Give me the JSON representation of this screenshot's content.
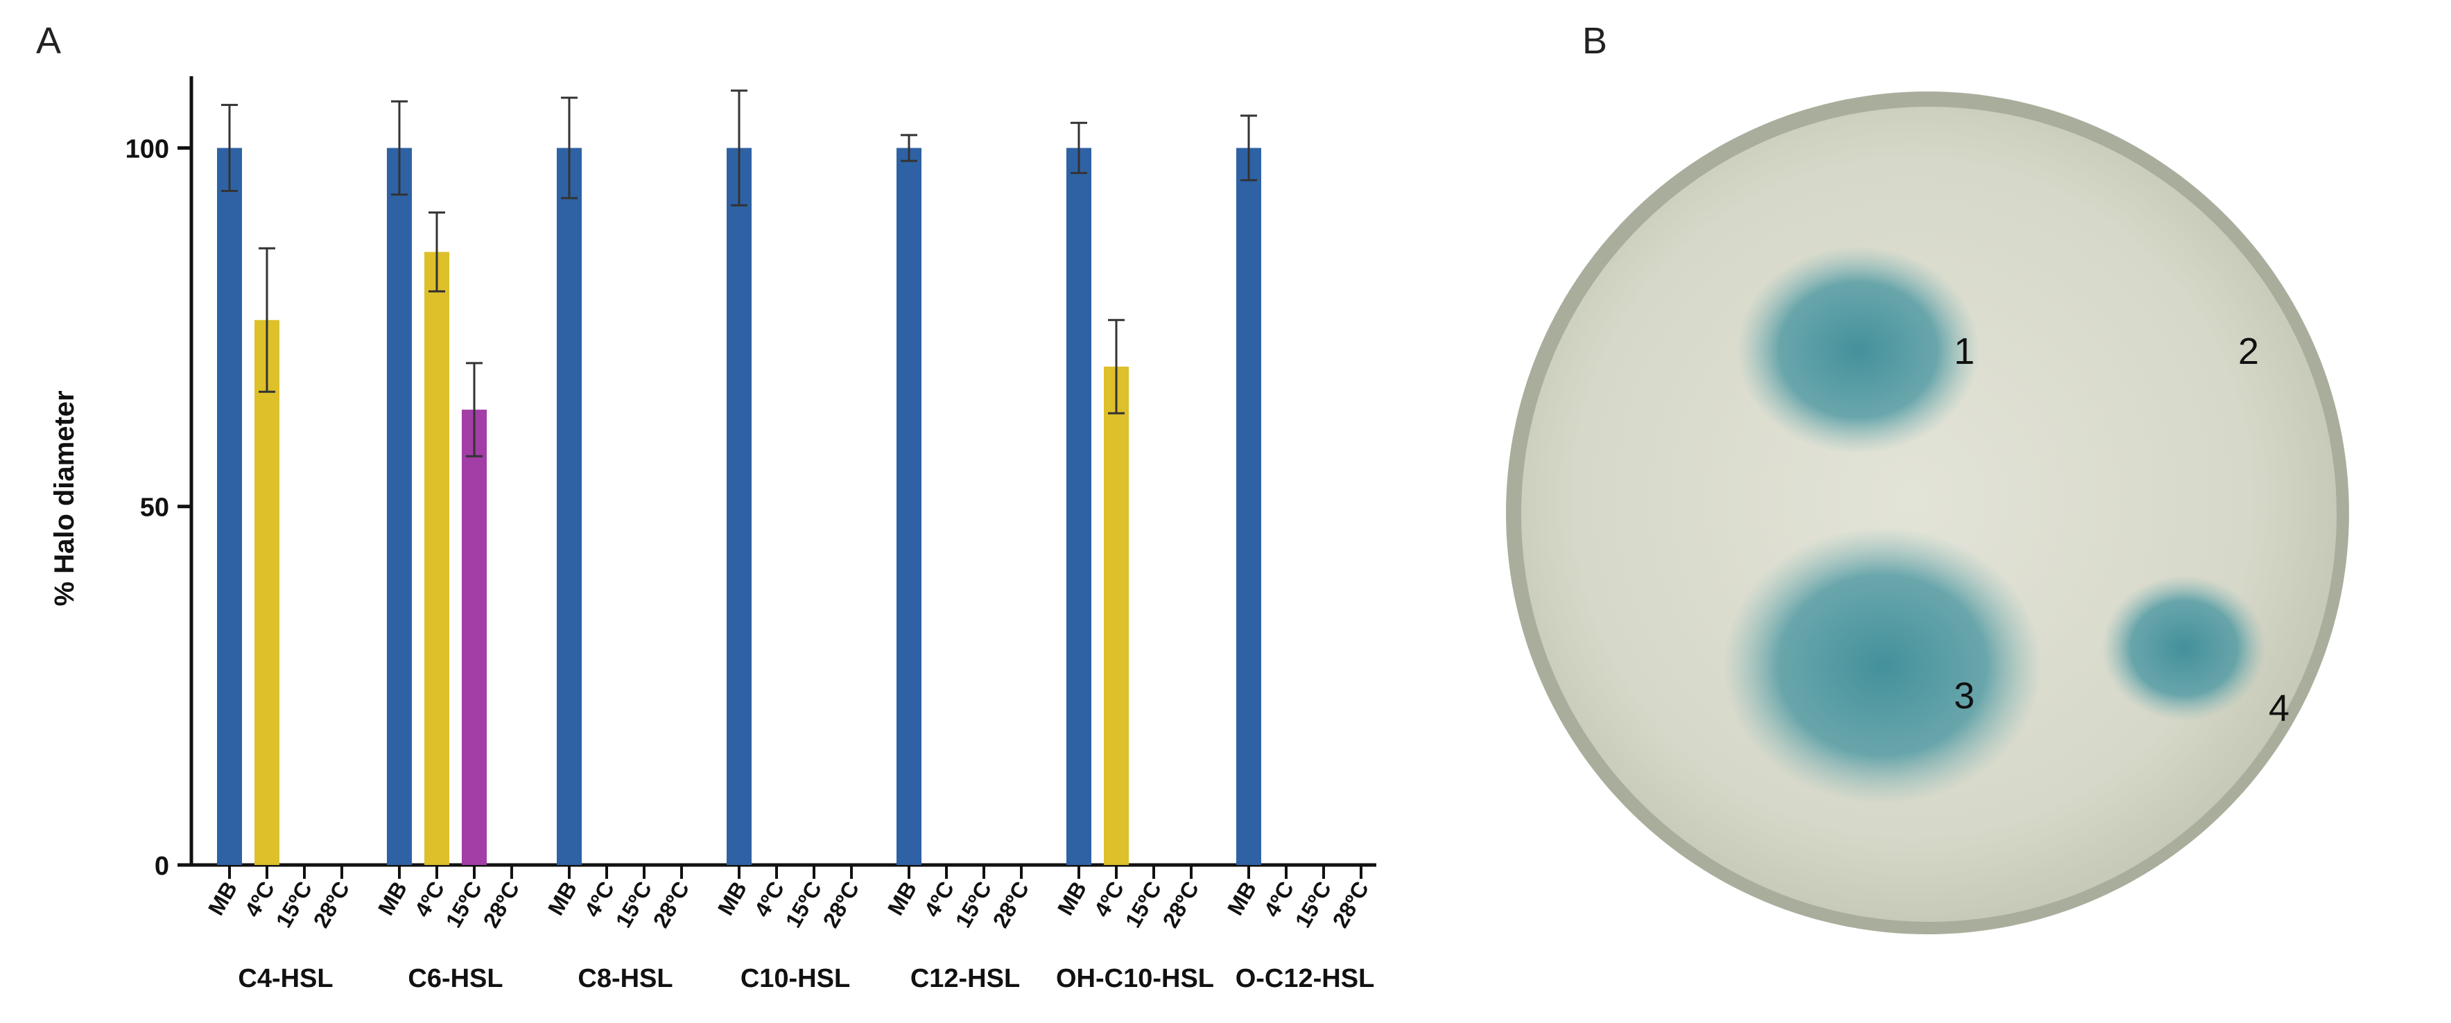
{
  "panels": {
    "a_label": "A",
    "b_label": "B"
  },
  "chart_data": {
    "type": "bar",
    "ylabel": "% Halo diameter",
    "ylim": [
      0,
      110
    ],
    "yticks": [
      0,
      50,
      100
    ],
    "bar_labels": [
      "MB",
      "4ºC",
      "15ºC",
      "28ºC"
    ],
    "colors": {
      "MB": "#2e62a4",
      "4ºC": "#ddc02a",
      "15ºC": "#a23ea6",
      "axis": "#111111",
      "error": "#333333"
    },
    "groups": [
      {
        "name": "C4-HSL",
        "values": [
          100,
          76,
          0,
          0
        ],
        "errors": [
          6,
          10,
          0,
          0
        ]
      },
      {
        "name": "C6-HSL",
        "values": [
          100,
          85.5,
          63.5,
          0
        ],
        "errors": [
          6.5,
          5.5,
          6.5,
          0
        ]
      },
      {
        "name": "C8-HSL",
        "values": [
          100,
          0,
          0,
          0
        ],
        "errors": [
          7,
          0,
          0,
          0
        ]
      },
      {
        "name": "C10-HSL",
        "values": [
          100,
          0,
          0,
          0
        ],
        "errors": [
          8,
          0,
          0,
          0
        ]
      },
      {
        "name": "C12-HSL",
        "values": [
          100,
          0,
          0,
          0
        ],
        "errors": [
          1.8,
          0,
          0,
          0
        ]
      },
      {
        "name": "OH-C10-HSL",
        "values": [
          100,
          69.5,
          0,
          0
        ],
        "errors": [
          3.5,
          6.5,
          0,
          0
        ]
      },
      {
        "name": "O-C12-HSL",
        "values": [
          100,
          0,
          0,
          0
        ],
        "errors": [
          4.5,
          0,
          0,
          0
        ]
      }
    ]
  },
  "photo": {
    "labels": [
      "1",
      "2",
      "3",
      "4"
    ],
    "colors": {
      "background": "#ffffff",
      "plate": "#d9dbcf",
      "rim": "#a9ae9c",
      "blue": "#3d8e9a"
    }
  }
}
